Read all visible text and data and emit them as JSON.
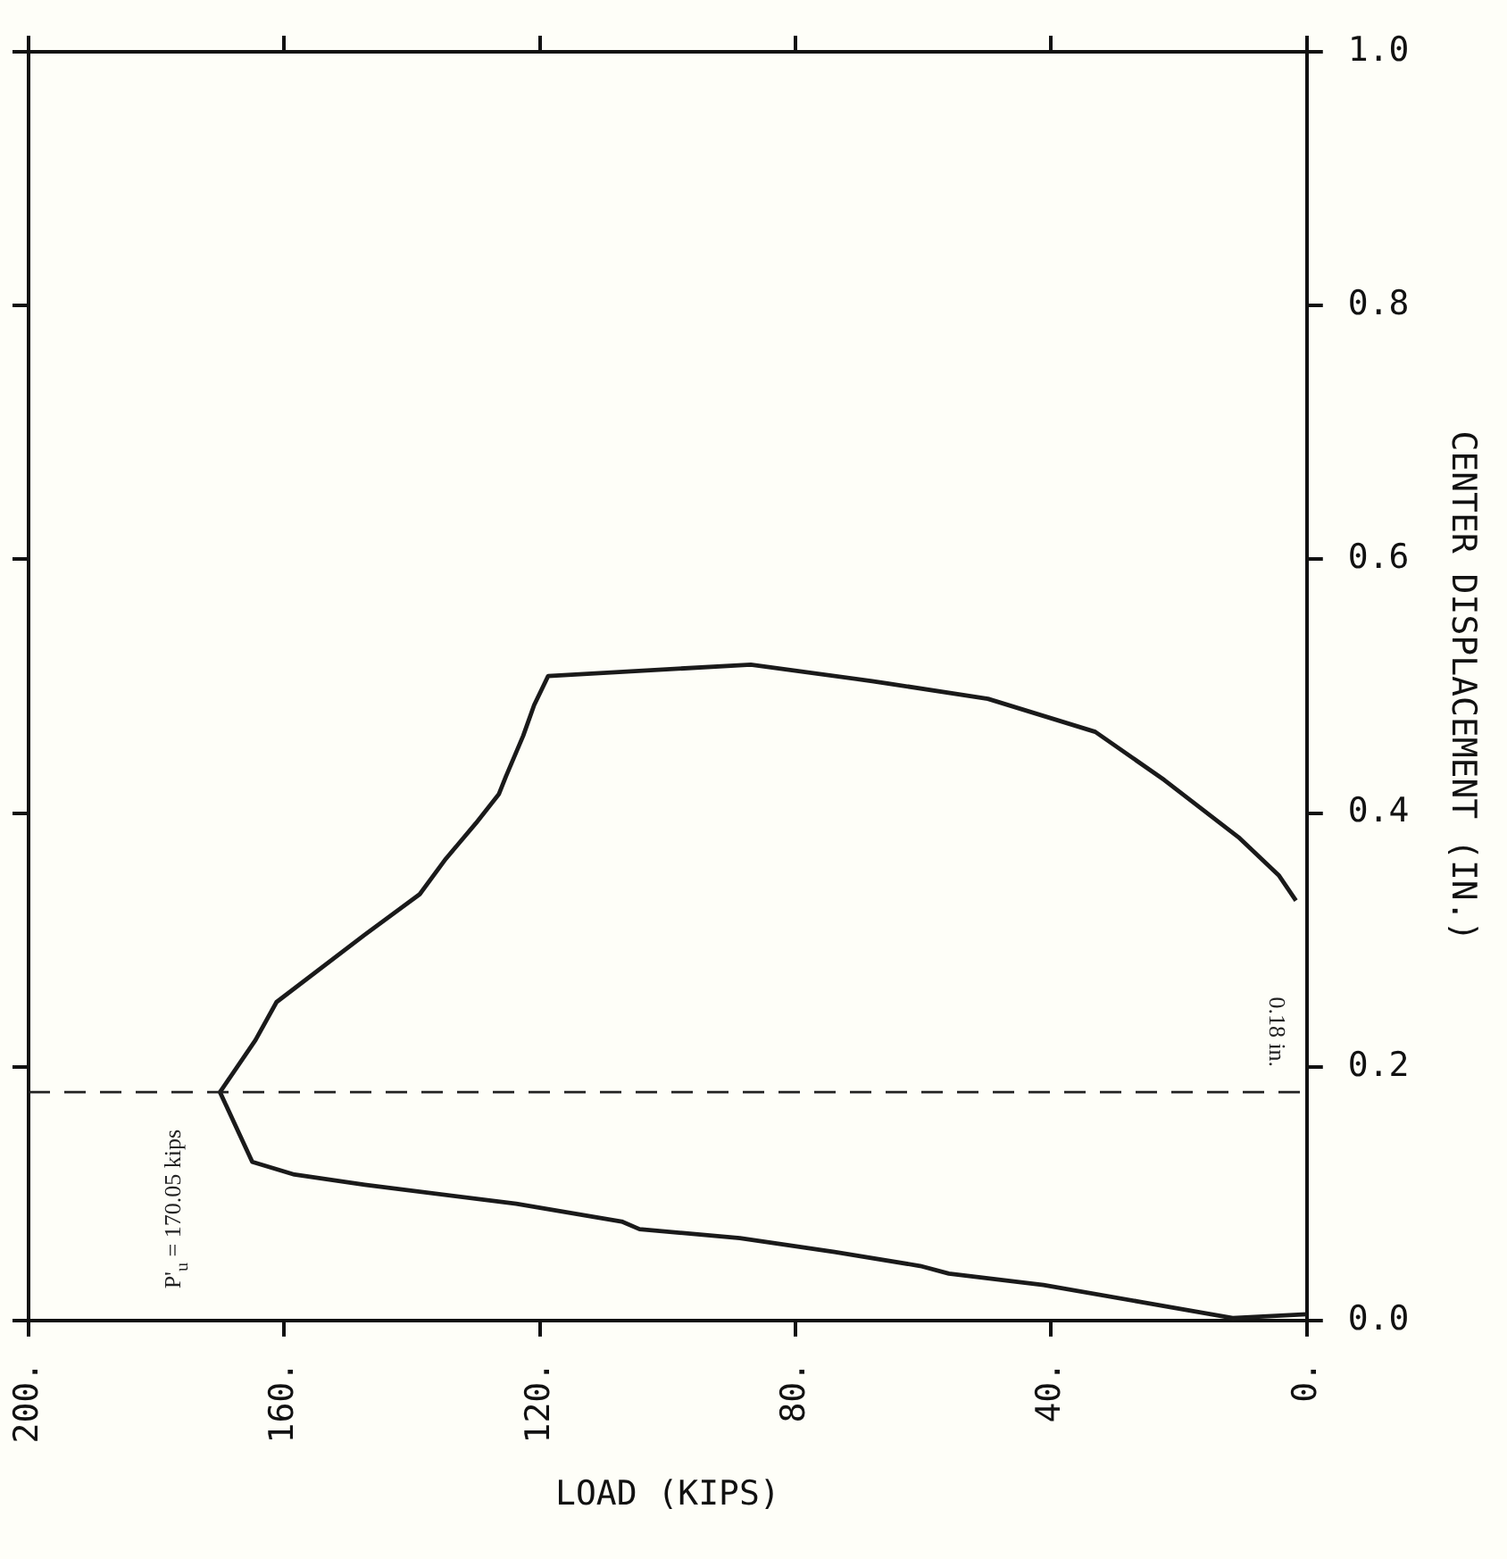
{
  "chart_data": {
    "type": "line",
    "xlabel": "LOAD (KIPS)",
    "ylabel": "CENTER DISPLACEMENT (IN.)",
    "x": [
      0,
      11.6,
      26.4,
      41.2,
      56,
      60.5,
      73.9,
      88.7,
      104.4,
      107.2,
      123.7,
      147.4,
      158.4,
      165,
      170.05,
      164.5,
      161.2,
      147.4,
      138.8,
      134.7,
      130,
      126.4,
      125.3,
      122.6,
      120.9,
      118.7,
      87,
      68,
      49.9,
      33.1,
      22.3,
      10.7,
      4.4,
      1.7
    ],
    "series": [
      {
        "color": "#1a1a1a",
        "values": [
          0.005,
          0.002,
          0.015,
          0.028,
          0.037,
          0.043,
          0.054,
          0.065,
          0.072,
          0.078,
          0.092,
          0.107,
          0.115,
          0.125,
          0.18,
          0.221,
          0.251,
          0.304,
          0.336,
          0.364,
          0.392,
          0.415,
          0.429,
          0.461,
          0.485,
          0.508,
          0.517,
          0.504,
          0.49,
          0.464,
          0.426,
          0.381,
          0.351,
          0.331
        ]
      }
    ],
    "xlim": [
      200,
      0
    ],
    "xticks": [
      {
        "value": 200,
        "label": "200."
      },
      {
        "value": 160,
        "label": "160."
      },
      {
        "value": 120,
        "label": "120."
      },
      {
        "value": 80,
        "label": "80."
      },
      {
        "value": 40,
        "label": "40."
      },
      {
        "value": 0,
        "label": "0."
      }
    ],
    "ylim": [
      0,
      1
    ],
    "yticks": [
      {
        "value": 0,
        "label": "0.0"
      },
      {
        "value": 0.2,
        "label": "0.2"
      },
      {
        "value": 0.4,
        "label": "0.4"
      },
      {
        "value": 0.6,
        "label": "0.6"
      },
      {
        "value": 0.8,
        "label": "0.8"
      },
      {
        "value": 1,
        "label": "1.0"
      }
    ],
    "ref_lines": [
      {
        "axis": "y",
        "value": 0.18,
        "label": "0.18 in.",
        "line_style": "dashed"
      }
    ],
    "annotations": [
      {
        "text": "P'$_{u}$ = 170.05 kips",
        "x": 170.05,
        "y": 0.18
      }
    ],
    "marker": "none",
    "line_style": "solid",
    "grid": false,
    "legend": false
  }
}
